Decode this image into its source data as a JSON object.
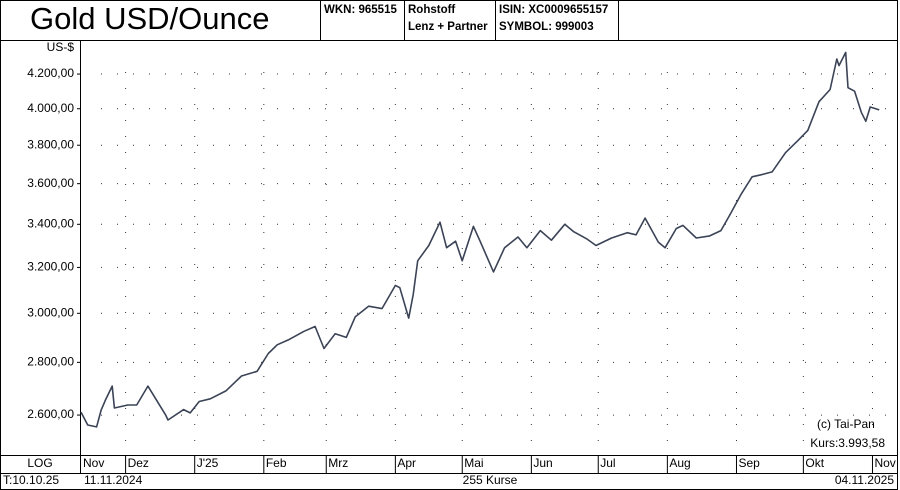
{
  "header": {
    "title": "Gold USD/Ounce",
    "wkn": "WKN: 965515",
    "category": "Rohstoff",
    "source": "Lenz + Partner",
    "isin": "ISIN: XC0009655157",
    "symbol": "SYMBOL: 999003"
  },
  "chart_data": {
    "type": "line",
    "y_unit": "US-$",
    "log_scale": true,
    "scale_label": "LOG",
    "grid": true,
    "xlim": [
      "11.11.2024",
      "12.11.2025"
    ],
    "ylim": [
      2458,
      4406
    ],
    "yticks": [
      {
        "value": 2600,
        "label": "2.600,00"
      },
      {
        "value": 2800,
        "label": "2.800,00"
      },
      {
        "value": 3000,
        "label": "3.000,00"
      },
      {
        "value": 3200,
        "label": "3.200,00"
      },
      {
        "value": 3400,
        "label": "3.400,00"
      },
      {
        "value": 3600,
        "label": "3.600,00"
      },
      {
        "value": 3800,
        "label": "3.800,00"
      },
      {
        "value": 4000,
        "label": "4.000,00"
      },
      {
        "value": 4200,
        "label": "4.200,00"
      }
    ],
    "xticks": [
      {
        "value": "01.11.2024",
        "label": "Nov"
      },
      {
        "value": "01.12.2024",
        "label": "Dez"
      },
      {
        "value": "01.01.2025",
        "label": "J'25"
      },
      {
        "value": "01.02.2025",
        "label": "Feb"
      },
      {
        "value": "01.03.2025",
        "label": "Mrz"
      },
      {
        "value": "01.04.2025",
        "label": "Apr"
      },
      {
        "value": "01.05.2025",
        "label": "Mai"
      },
      {
        "value": "01.06.2025",
        "label": "Jun"
      },
      {
        "value": "01.07.2025",
        "label": "Jul"
      },
      {
        "value": "01.08.2025",
        "label": "Aug"
      },
      {
        "value": "01.09.2025",
        "label": "Sep"
      },
      {
        "value": "01.10.2025",
        "label": "Okt"
      },
      {
        "value": "01.11.2025",
        "label": "Nov"
      }
    ],
    "x": [
      "11.11.2024",
      "14.11.2024",
      "18.11.2024",
      "20.11.2024",
      "22.11.2024",
      "25.11.2024",
      "26.11.2024",
      "02.12.2024",
      "06.12.2024",
      "11.12.2024",
      "16.12.2024",
      "19.12.2024",
      "20.12.2024",
      "27.12.2024",
      "30.12.2024",
      "03.01.2025",
      "08.01.2025",
      "15.01.2025",
      "22.01.2025",
      "29.01.2025",
      "03.02.2025",
      "07.02.2025",
      "12.02.2025",
      "19.02.2025",
      "24.02.2025",
      "28.02.2025",
      "05.03.2025",
      "10.03.2025",
      "14.03.2025",
      "20.03.2025",
      "26.03.2025",
      "01.04.2025",
      "03.04.2025",
      "07.04.2025",
      "09.04.2025",
      "11.04.2025",
      "16.04.2025",
      "21.04.2025",
      "24.04.2025",
      "28.04.2025",
      "01.05.2025",
      "06.05.2025",
      "09.05.2025",
      "15.05.2025",
      "20.05.2025",
      "26.05.2025",
      "30.05.2025",
      "05.06.2025",
      "10.06.2025",
      "16.06.2025",
      "20.06.2025",
      "26.06.2025",
      "30.06.2025",
      "07.07.2025",
      "14.07.2025",
      "18.07.2025",
      "22.07.2025",
      "28.07.2025",
      "31.07.2025",
      "05.08.2025",
      "08.08.2025",
      "14.08.2025",
      "20.08.2025",
      "25.08.2025",
      "29.08.2025",
      "03.09.2025",
      "08.09.2025",
      "12.09.2025",
      "17.09.2025",
      "23.09.2025",
      "29.09.2025",
      "03.10.2025",
      "08.10.2025",
      "13.10.2025",
      "16.10.2025",
      "17.10.2025",
      "20.10.2025",
      "21.10.2025",
      "24.10.2025",
      "27.10.2025",
      "29.10.2025",
      "31.10.2025",
      "04.11.2025"
    ],
    "series": [
      {
        "color": "#3b4356",
        "values": [
          2611,
          2564,
          2557,
          2618,
          2656,
          2708,
          2626,
          2637,
          2637,
          2708,
          2640,
          2600,
          2582,
          2620,
          2608,
          2650,
          2660,
          2690,
          2747,
          2765,
          2835,
          2870,
          2890,
          2925,
          2945,
          2855,
          2915,
          2900,
          2985,
          3030,
          3020,
          3120,
          3110,
          2980,
          3080,
          3230,
          3300,
          3410,
          3290,
          3320,
          3230,
          3390,
          3320,
          3180,
          3290,
          3340,
          3290,
          3370,
          3325,
          3400,
          3365,
          3330,
          3300,
          3335,
          3360,
          3350,
          3430,
          3315,
          3290,
          3380,
          3395,
          3335,
          3345,
          3370,
          3445,
          3545,
          3635,
          3645,
          3660,
          3760,
          3830,
          3880,
          4040,
          4110,
          4290,
          4250,
          4330,
          4120,
          4100,
          3980,
          3930,
          4010,
          3993.58
        ]
      }
    ],
    "copyright": "(c) Tai-Pan",
    "last_price": "Kurs:3.993,58",
    "date_label": "T:10.10.25",
    "start_label": "11.11.2024",
    "count_label": "255 Kurse",
    "end_label": "04.11.2025"
  }
}
